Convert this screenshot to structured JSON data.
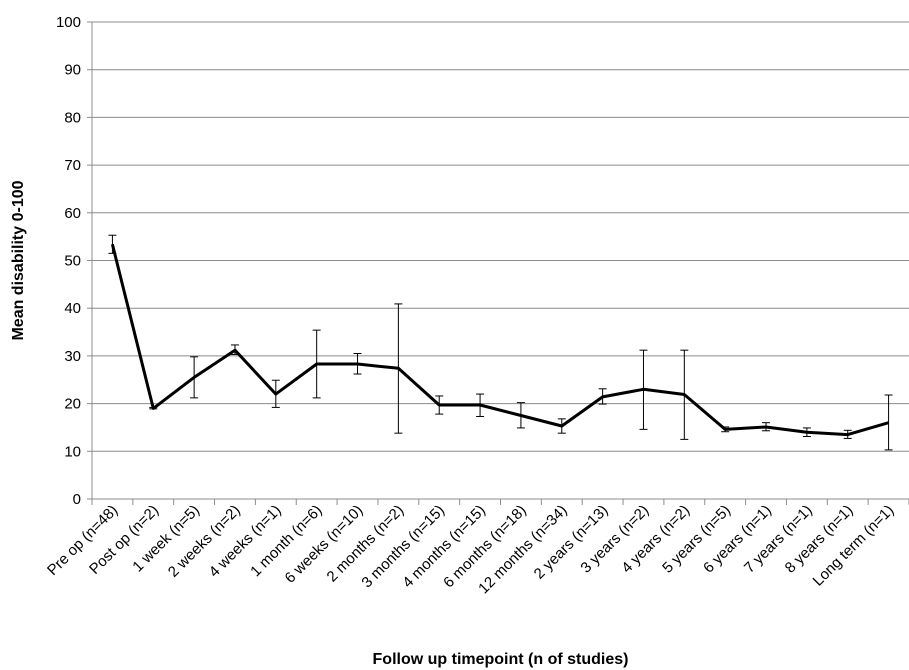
{
  "chart_data": {
    "type": "line",
    "title": "",
    "xlabel": "Follow up timepoint (n of studies)",
    "ylabel": "Mean disability 0-100",
    "ylim": [
      0,
      100
    ],
    "yticks": [
      0,
      10,
      20,
      30,
      40,
      50,
      60,
      70,
      80,
      90,
      100
    ],
    "grid": "horizontal",
    "categories": [
      "Pre op (n=48)",
      "Post op (n=2)",
      "1 week (n=5)",
      "2 weeks (n=2)",
      "4 weeks (n=1)",
      "1 month (n=6)",
      "6 weeks (n=10)",
      "2 months (n=2)",
      "3 months (n=15)",
      "4 months (n=15)",
      "6 months (n=18)",
      "12 months (n=34)",
      "2 years (n=13)",
      "3 years (n=2)",
      "4 years (n=2)",
      "5 years (n=5)",
      "6 years (n=1)",
      "7 years (n=1)",
      "8 years (n=1)",
      "Long term (n=1)"
    ],
    "series": [
      {
        "values": [
          53.4,
          19.0,
          25.5,
          31.2,
          22.0,
          28.3,
          28.3,
          27.4,
          19.7,
          19.7,
          17.5,
          15.3,
          21.4,
          23.0,
          21.9,
          14.6,
          15.1,
          14.0,
          13.5,
          16.0
        ],
        "error_low": [
          51.5,
          18.9,
          21.2,
          30.3,
          19.2,
          21.2,
          26.2,
          13.8,
          17.8,
          17.3,
          14.9,
          13.8,
          19.9,
          14.6,
          12.5,
          14.1,
          14.3,
          13.1,
          12.7,
          10.3
        ],
        "error_high": [
          55.3,
          19.2,
          29.8,
          32.3,
          24.9,
          35.4,
          30.5,
          40.9,
          21.6,
          22.0,
          20.2,
          16.8,
          23.1,
          31.2,
          31.2,
          15.1,
          16.0,
          14.9,
          14.4,
          21.8
        ],
        "color": "#000000"
      }
    ]
  }
}
